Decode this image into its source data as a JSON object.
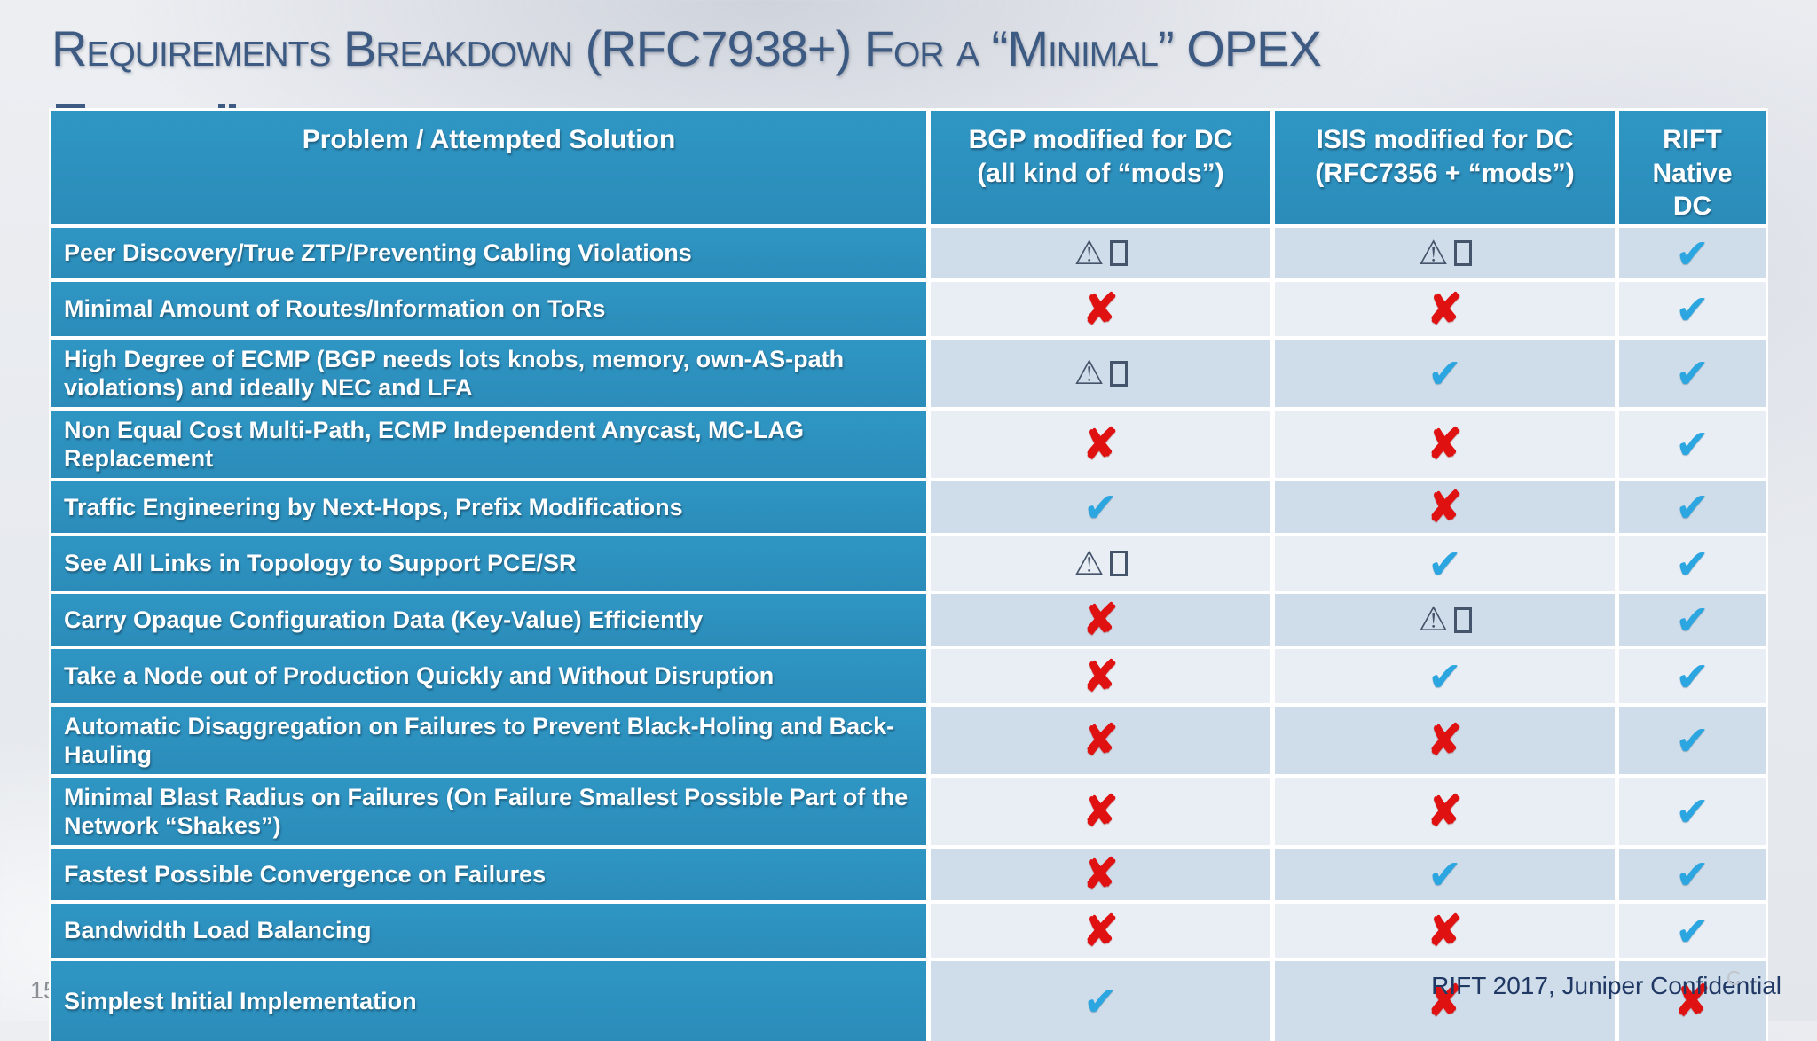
{
  "slide": {
    "title": "Requirements Breakdown (RFC7938+) For a “Minimal” OPEX",
    "page_number": "15",
    "footer": "RIFT 2017, Juniper Confidential",
    "corner_artifact": "C"
  },
  "icons": {
    "check": "✔",
    "cross": "✘",
    "warning": "⚠"
  },
  "colors": {
    "header_bg": "#2e93c1",
    "row_dark": "#cfdce9",
    "row_light": "#e9eef5",
    "check": "#2ca6e0",
    "cross": "#df1111",
    "warning": "#44546a",
    "title": "#3d5a82",
    "footer": "#1f3864"
  },
  "table": {
    "columns": [
      "Problem / Attempted Solution",
      "BGP modified for DC\n(all kind of “mods”)",
      "ISIS modified for DC\n(RFC7356 + “mods”)",
      "RIFT\nNative\nDC"
    ],
    "rows": [
      {
        "problem": "Peer Discovery/True ZTP/Preventing Cabling Violations",
        "bgp": "warning",
        "isis": "warning",
        "rift": "check"
      },
      {
        "problem": "Minimal Amount of Routes/Information on ToRs",
        "bgp": "cross",
        "isis": "cross",
        "rift": "check"
      },
      {
        "problem": "High Degree of ECMP (BGP needs lots knobs, memory, own-AS-path violations) and ideally NEC and LFA",
        "bgp": "warning",
        "isis": "check",
        "rift": "check"
      },
      {
        "problem": "Non Equal Cost Multi-Path, ECMP Independent Anycast, MC-LAG Replacement",
        "bgp": "cross",
        "isis": "cross",
        "rift": "check"
      },
      {
        "problem": "Traffic Engineering by Next-Hops, Prefix Modifications",
        "bgp": "check",
        "isis": "cross",
        "rift": "check"
      },
      {
        "problem": "See All Links in Topology to Support PCE/SR",
        "bgp": "warning",
        "isis": "check",
        "rift": "check"
      },
      {
        "problem": "Carry Opaque Configuration Data (Key-Value) Efficiently",
        "bgp": "cross",
        "isis": "warning",
        "rift": "check"
      },
      {
        "problem": "Take a Node out of Production Quickly and Without Disruption",
        "bgp": "cross",
        "isis": "check",
        "rift": "check"
      },
      {
        "problem": "Automatic Disaggregation on Failures to Prevent Black-Holing and Back-Hauling",
        "bgp": "cross",
        "isis": "cross",
        "rift": "check"
      },
      {
        "problem": "Minimal Blast Radius on Failures (On Failure Smallest Possible Part of the Network “Shakes”)",
        "bgp": "cross",
        "isis": "cross",
        "rift": "check"
      },
      {
        "problem": "Fastest Possible Convergence on Failures",
        "bgp": "cross",
        "isis": "check",
        "rift": "check"
      },
      {
        "problem": "Bandwidth Load Balancing",
        "bgp": "cross",
        "isis": "cross",
        "rift": "check"
      },
      {
        "problem": "Simplest Initial Implementation",
        "bgp": "check",
        "isis": "cross",
        "rift": "cross"
      }
    ]
  }
}
